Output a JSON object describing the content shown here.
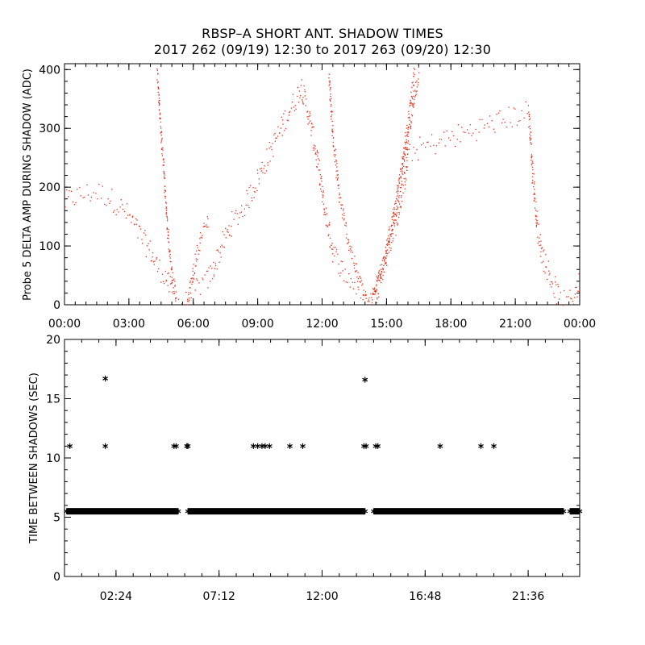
{
  "title_line1": "RBSP–A SHORT ANT. SHADOW TIMES",
  "title_line2": "2017 262 (09/19) 12:30 to 2017 263 (09/20) 12:30",
  "colors": {
    "amp": "#e8301c",
    "shadow": "#000000",
    "axes": "#000000"
  },
  "chart_data": [
    {
      "type": "scatter",
      "ylabel": "Probe 5 DELTA AMP DURING SHADOW (ADC)",
      "xlim": [
        0,
        24
      ],
      "ylim": [
        0,
        410
      ],
      "x_ticks": [
        0,
        3,
        6,
        9,
        12,
        15,
        18,
        21,
        24
      ],
      "x_tick_labels": [
        "00:00",
        "03:00",
        "06:00",
        "09:00",
        "12:00",
        "15:00",
        "18:00",
        "21:00",
        "00:00"
      ],
      "y_ticks": [
        0,
        100,
        200,
        300,
        400
      ],
      "y_tick_labels": [
        "0",
        "100",
        "200",
        "300",
        "400"
      ],
      "series": [
        {
          "marker": "dot",
          "band": 20,
          "points": [
            [
              0.0,
              175
            ],
            [
              0.5,
              185
            ],
            [
              1.0,
              190
            ],
            [
              1.5,
              192
            ],
            [
              2.0,
              185
            ],
            [
              2.5,
              170
            ],
            [
              3.0,
              150
            ],
            [
              3.5,
              120
            ],
            [
              4.0,
              90
            ],
            [
              4.3,
              65
            ],
            [
              4.6,
              55
            ],
            [
              4.9,
              30
            ],
            [
              5.2,
              5
            ],
            [
              5.7,
              5
            ],
            [
              6.0,
              25
            ],
            [
              6.3,
              35
            ],
            [
              6.6,
              40
            ],
            [
              6.9,
              60
            ],
            [
              7.3,
              100
            ],
            [
              7.8,
              140
            ],
            [
              8.3,
              165
            ],
            [
              8.8,
              200
            ],
            [
              9.3,
              240
            ],
            [
              9.8,
              280
            ],
            [
              10.3,
              320
            ],
            [
              10.8,
              355
            ],
            [
              11.0,
              375
            ],
            [
              11.3,
              330
            ],
            [
              11.7,
              260
            ],
            [
              12.1,
              160
            ],
            [
              12.5,
              90
            ],
            [
              13.0,
              55
            ],
            [
              13.5,
              35
            ],
            [
              14.0,
              12
            ],
            [
              14.2,
              3
            ],
            [
              14.5,
              20
            ],
            [
              14.8,
              60
            ],
            [
              15.1,
              100
            ],
            [
              15.5,
              150
            ],
            [
              15.8,
              210
            ],
            [
              16.0,
              260
            ],
            [
              21.6,
              330
            ],
            [
              21.8,
              220
            ],
            [
              22.0,
              130
            ],
            [
              22.3,
              80
            ],
            [
              22.7,
              40
            ],
            [
              23.1,
              5
            ],
            [
              23.5,
              5
            ],
            [
              23.8,
              25
            ],
            [
              24.0,
              40
            ]
          ]
        },
        {
          "marker": "dot",
          "band": 12,
          "points": [
            [
              4.3,
              400
            ],
            [
              4.4,
              330
            ],
            [
              4.6,
              230
            ],
            [
              4.8,
              120
            ],
            [
              5.0,
              50
            ],
            [
              5.2,
              8
            ]
          ]
        },
        {
          "marker": "dot",
          "band": 14,
          "points": [
            [
              5.7,
              8
            ],
            [
              5.9,
              40
            ],
            [
              6.1,
              80
            ],
            [
              6.3,
              110
            ],
            [
              6.5,
              130
            ],
            [
              6.7,
              150
            ]
          ]
        },
        {
          "marker": "dot",
          "band": 14,
          "points": [
            [
              12.3,
              390
            ],
            [
              12.5,
              280
            ],
            [
              12.8,
              180
            ],
            [
              13.2,
              110
            ],
            [
              13.6,
              55
            ],
            [
              14.0,
              15
            ],
            [
              14.2,
              4
            ]
          ]
        },
        {
          "marker": "dot",
          "band": 14,
          "points": [
            [
              14.3,
              5
            ],
            [
              14.6,
              45
            ],
            [
              15.0,
              100
            ],
            [
              15.4,
              170
            ],
            [
              15.8,
              260
            ],
            [
              16.1,
              340
            ],
            [
              16.3,
              400
            ]
          ]
        },
        {
          "marker": "dot",
          "band": 14,
          "points": [
            [
              14.3,
              15
            ],
            [
              14.7,
              60
            ],
            [
              15.2,
              120
            ],
            [
              15.6,
              200
            ],
            [
              16.0,
              290
            ],
            [
              16.3,
              360
            ],
            [
              16.5,
              400
            ]
          ]
        }
      ]
    },
    {
      "type": "scatter",
      "ylabel": "TIME BETWEEN SHADOWS (SEC)",
      "xlim": [
        0,
        24
      ],
      "ylim": [
        0,
        20
      ],
      "x_ticks": [
        2.4,
        7.2,
        12.0,
        16.8,
        21.6
      ],
      "x_tick_labels": [
        "02:24",
        "07:12",
        "12:00",
        "16:48",
        "21:36"
      ],
      "y_ticks": [
        0,
        5,
        10,
        15,
        20
      ],
      "y_tick_labels": [
        "0",
        "5",
        "10",
        "15",
        "20"
      ],
      "series": [
        {
          "marker": "asterisk",
          "segments": [
            [
              0.1,
              5.3,
              5.5
            ],
            [
              5.75,
              14.0,
              5.5
            ],
            [
              14.4,
              23.25,
              5.5
            ],
            [
              23.55,
              24.0,
              5.5
            ]
          ],
          "points": [
            [
              0.25,
              11
            ],
            [
              1.9,
              11
            ],
            [
              1.9,
              16.7
            ],
            [
              5.1,
              11
            ],
            [
              5.2,
              11
            ],
            [
              5.7,
              11
            ],
            [
              5.75,
              11
            ],
            [
              8.8,
              11
            ],
            [
              9.0,
              11
            ],
            [
              9.2,
              11
            ],
            [
              9.35,
              11
            ],
            [
              9.55,
              11
            ],
            [
              10.5,
              11
            ],
            [
              11.1,
              11
            ],
            [
              14.0,
              16.6
            ],
            [
              13.95,
              11
            ],
            [
              14.05,
              11
            ],
            [
              14.5,
              11
            ],
            [
              14.6,
              11
            ],
            [
              17.5,
              11
            ],
            [
              19.4,
              11
            ],
            [
              20.0,
              11
            ]
          ]
        }
      ]
    }
  ]
}
